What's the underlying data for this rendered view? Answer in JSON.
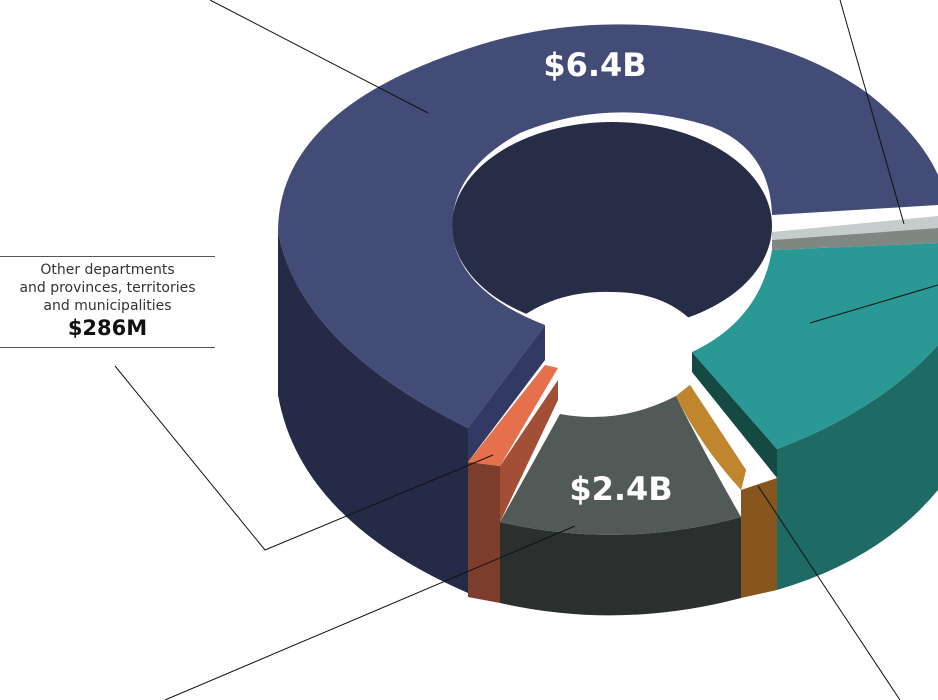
{
  "chart_data": {
    "type": "pie",
    "title": "",
    "style": "3d-donut",
    "slices": [
      {
        "label": "",
        "value": 6.4,
        "value_label": "$6.4B",
        "color": "#434b77"
      },
      {
        "label": "",
        "value": null,
        "value_label": "",
        "color": "#c4cdcb"
      },
      {
        "label": "",
        "value": null,
        "value_label": "",
        "color": "#7f8783"
      },
      {
        "label": "",
        "value": null,
        "value_label": "",
        "color": "#2a9894"
      },
      {
        "label": "",
        "value": null,
        "value_label": "",
        "color": "#c0862e"
      },
      {
        "label": "",
        "value": 2.4,
        "value_label": "$2.4B",
        "color": "#525a57"
      },
      {
        "label": "Other departments and provinces, territories and municipalities",
        "value": 0.286,
        "value_label": "$286M",
        "color": "#e6704b"
      }
    ]
  },
  "callout": {
    "lines": [
      "Other departments",
      "and provinces, territories",
      "and municipalities"
    ],
    "amount": "$286M"
  },
  "labels": {
    "big": "$6.4B",
    "mid": "$2.4B"
  }
}
